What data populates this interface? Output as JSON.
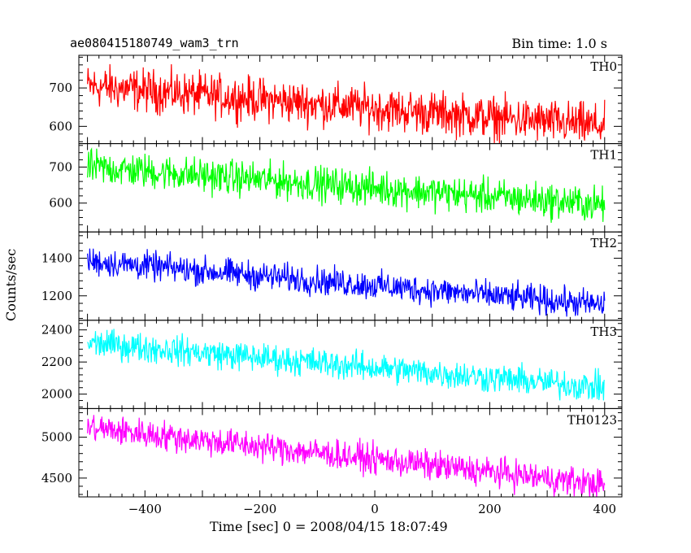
{
  "chart_data": {
    "type": "line",
    "title": "ae080415180749_wam3_trn",
    "subtitle": "Bin time: 1.0 s",
    "xlabel": "Time [sec] 0 = 2008/04/15 18:07:49",
    "ylabel": "Counts/sec",
    "xlim": [
      -515,
      430
    ],
    "x_ticks": [
      -400,
      -200,
      0,
      200,
      400
    ],
    "x_tick_labels": [
      "−400",
      "−200",
      "0",
      "200",
      "400"
    ],
    "x_range": [
      -500,
      400
    ],
    "bin_time_sec": 1.0,
    "panels": [
      {
        "name": "TH0",
        "color": "#ff0000",
        "ylim": [
          555,
          785
        ],
        "yticks": [
          600,
          700
        ],
        "start": 705,
        "end": 600,
        "noise": 55
      },
      {
        "name": "TH1",
        "color": "#00ff00",
        "ylim": [
          520,
          765
        ],
        "yticks": [
          600,
          700
        ],
        "start": 700,
        "end": 595,
        "noise": 48
      },
      {
        "name": "TH2",
        "color": "#0000ff",
        "ylim": [
          1070,
          1540
        ],
        "yticks": [
          1200,
          1400
        ],
        "start": 1385,
        "end": 1150,
        "noise": 75
      },
      {
        "name": "TH3",
        "color": "#00ffff",
        "ylim": [
          1910,
          2460
        ],
        "yticks": [
          2000,
          2200,
          2400
        ],
        "start": 2320,
        "end": 2040,
        "noise": 90
      },
      {
        "name": "TH0123",
        "color": "#ff00ff",
        "ylim": [
          4270,
          5350
        ],
        "yticks": [
          4500,
          5000
        ],
        "start": 5120,
        "end": 4420,
        "noise": 180
      }
    ]
  }
}
